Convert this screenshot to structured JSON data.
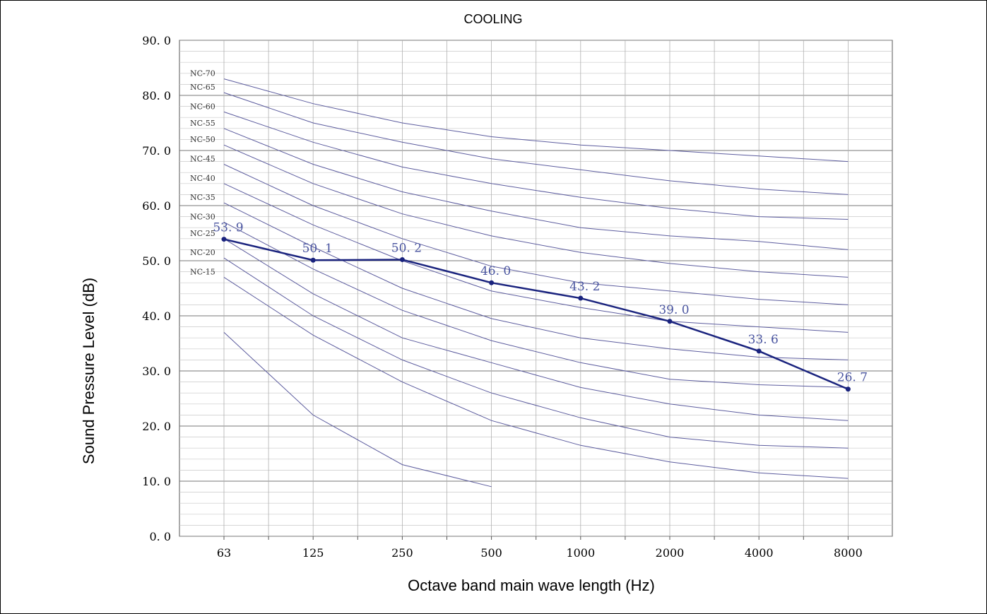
{
  "chart_data": {
    "type": "line",
    "title": "COOLING",
    "xlabel": "Octave band main wave length (Hz)",
    "ylabel": "Sound Pressure  Level (dB)",
    "categories": [
      "63",
      "125",
      "250",
      "500",
      "1000",
      "2000",
      "4000",
      "8000"
    ],
    "y_ticks": [
      "0. 0",
      "10. 0",
      "20. 0",
      "30. 0",
      "40. 0",
      "50. 0",
      "60. 0",
      "70. 0",
      "80. 0",
      "90. 0"
    ],
    "ylim": [
      0,
      90
    ],
    "grid": true,
    "measured": {
      "values": [
        53.9,
        50.1,
        50.2,
        46.0,
        43.2,
        39.0,
        33.6,
        26.7
      ],
      "labels": [
        "53. 9",
        "50. 1",
        "50. 2",
        "46. 0",
        "43. 2",
        "39. 0",
        "33. 6",
        "26. 7"
      ],
      "color": "#1a237e"
    },
    "nc_curves": [
      {
        "name": "NC-70",
        "values": [
          83,
          78.5,
          75,
          72.5,
          71,
          70,
          69,
          68
        ]
      },
      {
        "name": "NC-65",
        "values": [
          80.5,
          75,
          71.5,
          68.5,
          66.5,
          64.5,
          63,
          62
        ]
      },
      {
        "name": "NC-60",
        "values": [
          77,
          71.5,
          67,
          64,
          61.5,
          59.5,
          58,
          57.5
        ]
      },
      {
        "name": "NC-55",
        "values": [
          74,
          67.5,
          62.5,
          59,
          56,
          54.5,
          53.5,
          52
        ]
      },
      {
        "name": "NC-50",
        "values": [
          71,
          64,
          58.5,
          54.5,
          51.5,
          49.5,
          48,
          47
        ]
      },
      {
        "name": "NC-45",
        "values": [
          67.5,
          60,
          54,
          49,
          46,
          44.5,
          43,
          42
        ]
      },
      {
        "name": "NC-40",
        "values": [
          64,
          56.5,
          50,
          44.5,
          41.5,
          39,
          38,
          37
        ]
      },
      {
        "name": "NC-35",
        "values": [
          60.5,
          52.5,
          45,
          39.5,
          36,
          34,
          32.5,
          32
        ]
      },
      {
        "name": "NC-30",
        "values": [
          57,
          48.5,
          41,
          35.5,
          31.5,
          28.5,
          27.5,
          27
        ]
      },
      {
        "name": "NC-25",
        "values": [
          54,
          44,
          36,
          31.5,
          27,
          24,
          22,
          21
        ]
      },
      {
        "name": "NC-20",
        "values": [
          50.5,
          40,
          32,
          26,
          21.5,
          18,
          16.5,
          16
        ]
      },
      {
        "name": "NC-15",
        "values": [
          47,
          36.5,
          28,
          21,
          16.5,
          13.5,
          11.5,
          10.5
        ]
      },
      {
        "name": "",
        "values": [
          37,
          22,
          13,
          9
        ]
      }
    ],
    "curve_color": "#5c5c9e"
  }
}
